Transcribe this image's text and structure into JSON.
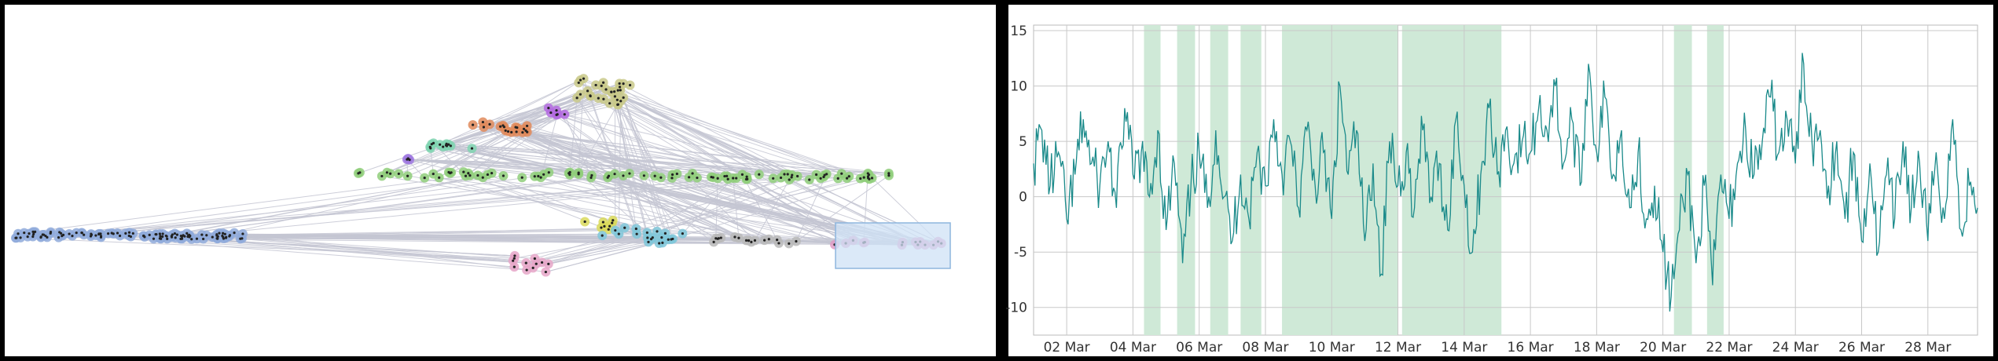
{
  "chart_data": [
    {
      "type": "scatter",
      "grid": false,
      "axes": "none",
      "clusters": [
        {
          "color": "#8faadb",
          "points": 110
        },
        {
          "color": "#8fce7a",
          "points": 90
        },
        {
          "color": "#c9c98a",
          "points": 30
        },
        {
          "color": "#e08a5a",
          "points": 18
        },
        {
          "color": "#b46be0",
          "points": 6
        },
        {
          "color": "#7fd3b0",
          "points": 12
        },
        {
          "color": "#a07ae0",
          "points": 3
        },
        {
          "color": "#d9d95a",
          "points": 8
        },
        {
          "color": "#7fc7d9",
          "points": 20
        },
        {
          "color": "#b8b8b8",
          "points": 18
        },
        {
          "color": "#e09ac6",
          "points": 14
        },
        {
          "color": "#e6a6c8",
          "points": 12
        }
      ],
      "selection": {
        "color": "#cfe2f5"
      }
    },
    {
      "type": "line",
      "grid": true,
      "series_color": "#1a8a8a",
      "highlight_color": "#cfe9d7",
      "x_range": [
        "2021-03-01",
        "2021-03-29T12:00"
      ],
      "ylim": [
        -12.5,
        15.5
      ],
      "yticks": [
        15,
        10,
        5,
        0,
        -5,
        -10
      ],
      "yticklabels": [
        "15",
        "10",
        "5",
        "0",
        "-5",
        "-10"
      ],
      "xticks": [
        "2021-03-02",
        "2021-03-04",
        "2021-03-06",
        "2021-03-08",
        "2021-03-10",
        "2021-03-12",
        "2021-03-14",
        "2021-03-16",
        "2021-03-18",
        "2021-03-20",
        "2021-03-22",
        "2021-03-24",
        "2021-03-26",
        "2021-03-28"
      ],
      "xticklabels": [
        "02 Mar",
        "04 Mar",
        "06 Mar",
        "08 Mar",
        "10 Mar",
        "12 Mar",
        "14 Mar",
        "16 Mar",
        "18 Mar",
        "20 Mar",
        "22 Mar",
        "24 Mar",
        "26 Mar",
        "28 Mar"
      ],
      "highlight_bands": [
        [
          "2021-03-04T08:00",
          "2021-03-04T20:00"
        ],
        [
          "2021-03-05T08:00",
          "2021-03-05T21:00"
        ],
        [
          "2021-03-06T08:00",
          "2021-03-06T21:00"
        ],
        [
          "2021-03-07T06:00",
          "2021-03-07T21:00"
        ],
        [
          "2021-03-08T12:00",
          "2021-03-12T00:00"
        ],
        [
          "2021-03-12T03:00",
          "2021-03-15T03:00"
        ],
        [
          "2021-03-20T08:00",
          "2021-03-20T21:00"
        ],
        [
          "2021-03-21T08:00",
          "2021-03-21T20:00"
        ]
      ],
      "series": [
        {
          "values": [
            [
              "2021-03-01T00:00",
              3
            ],
            [
              "2021-03-01T06:00",
              6
            ],
            [
              "2021-03-01T12:00",
              1
            ],
            [
              "2021-03-01T18:00",
              4
            ],
            [
              "2021-03-02T00:00",
              -2
            ],
            [
              "2021-03-02T06:00",
              2
            ],
            [
              "2021-03-02T12:00",
              7
            ],
            [
              "2021-03-02T18:00",
              3
            ],
            [
              "2021-03-03T00:00",
              1
            ],
            [
              "2021-03-03T06:00",
              5
            ],
            [
              "2021-03-03T12:00",
              -1
            ],
            [
              "2021-03-03T18:00",
              8
            ],
            [
              "2021-03-04T00:00",
              2
            ],
            [
              "2021-03-04T06:00",
              4
            ],
            [
              "2021-03-04T12:00",
              0
            ],
            [
              "2021-03-04T18:00",
              6
            ],
            [
              "2021-03-05T00:00",
              -3
            ],
            [
              "2021-03-05T06:00",
              3
            ],
            [
              "2021-03-05T12:00",
              -6
            ],
            [
              "2021-03-05T18:00",
              1
            ],
            [
              "2021-03-06T00:00",
              4
            ],
            [
              "2021-03-06T06:00",
              -1
            ],
            [
              "2021-03-06T12:00",
              6
            ],
            [
              "2021-03-06T18:00",
              0
            ],
            [
              "2021-03-07T00:00",
              -4
            ],
            [
              "2021-03-07T06:00",
              2
            ],
            [
              "2021-03-07T12:00",
              -2
            ],
            [
              "2021-03-07T18:00",
              4
            ],
            [
              "2021-03-08T00:00",
              1
            ],
            [
              "2021-03-08T06:00",
              7
            ],
            [
              "2021-03-08T12:00",
              2
            ],
            [
              "2021-03-08T18:00",
              5
            ],
            [
              "2021-03-09T00:00",
              -1
            ],
            [
              "2021-03-09T06:00",
              6
            ],
            [
              "2021-03-09T12:00",
              1
            ],
            [
              "2021-03-09T18:00",
              4
            ],
            [
              "2021-03-10T00:00",
              -2
            ],
            [
              "2021-03-10T06:00",
              10
            ],
            [
              "2021-03-10T12:00",
              2
            ],
            [
              "2021-03-10T18:00",
              6
            ],
            [
              "2021-03-11T00:00",
              -4
            ],
            [
              "2021-03-11T06:00",
              3
            ],
            [
              "2021-03-11T12:00",
              -7
            ],
            [
              "2021-03-11T18:00",
              5
            ],
            [
              "2021-03-12T00:00",
              1
            ],
            [
              "2021-03-12T06:00",
              4
            ],
            [
              "2021-03-12T12:00",
              -1
            ],
            [
              "2021-03-12T18:00",
              6
            ],
            [
              "2021-03-13T00:00",
              0
            ],
            [
              "2021-03-13T06:00",
              3
            ],
            [
              "2021-03-13T12:00",
              -3
            ],
            [
              "2021-03-13T18:00",
              7
            ],
            [
              "2021-03-14T00:00",
              1
            ],
            [
              "2021-03-14T06:00",
              -5
            ],
            [
              "2021-03-14T12:00",
              2
            ],
            [
              "2021-03-14T18:00",
              8
            ],
            [
              "2021-03-15T00:00",
              2
            ],
            [
              "2021-03-15T06:00",
              6
            ],
            [
              "2021-03-15T12:00",
              3
            ],
            [
              "2021-03-15T18:00",
              5
            ],
            [
              "2021-03-16T00:00",
              4
            ],
            [
              "2021-03-16T06:00",
              8
            ],
            [
              "2021-03-16T12:00",
              6
            ],
            [
              "2021-03-16T18:00",
              10
            ],
            [
              "2021-03-17T00:00",
              3
            ],
            [
              "2021-03-17T06:00",
              7
            ],
            [
              "2021-03-17T12:00",
              1
            ],
            [
              "2021-03-17T18:00",
              12
            ],
            [
              "2021-03-18T00:00",
              4
            ],
            [
              "2021-03-18T06:00",
              9
            ],
            [
              "2021-03-18T12:00",
              2
            ],
            [
              "2021-03-18T18:00",
              6
            ],
            [
              "2021-03-19T00:00",
              -1
            ],
            [
              "2021-03-19T06:00",
              4
            ],
            [
              "2021-03-19T12:00",
              -2
            ],
            [
              "2021-03-19T18:00",
              1
            ],
            [
              "2021-03-20T00:00",
              -5
            ],
            [
              "2021-03-20T06:00",
              -9
            ],
            [
              "2021-03-20T12:00",
              -3
            ],
            [
              "2021-03-20T18:00",
              2
            ],
            [
              "2021-03-21T00:00",
              -6
            ],
            [
              "2021-03-21T06:00",
              1
            ],
            [
              "2021-03-21T12:00",
              -8
            ],
            [
              "2021-03-21T18:00",
              2
            ],
            [
              "2021-03-22T00:00",
              -2
            ],
            [
              "2021-03-22T06:00",
              3
            ],
            [
              "2021-03-22T12:00",
              6
            ],
            [
              "2021-03-22T18:00",
              2
            ],
            [
              "2021-03-23T00:00",
              5
            ],
            [
              "2021-03-23T06:00",
              9
            ],
            [
              "2021-03-23T12:00",
              4
            ],
            [
              "2021-03-23T18:00",
              7
            ],
            [
              "2021-03-24T00:00",
              3
            ],
            [
              "2021-03-24T06:00",
              12
            ],
            [
              "2021-03-24T12:00",
              5
            ],
            [
              "2021-03-24T18:00",
              6
            ],
            [
              "2021-03-25T00:00",
              1
            ],
            [
              "2021-03-25T06:00",
              5
            ],
            [
              "2021-03-25T12:00",
              -2
            ],
            [
              "2021-03-25T18:00",
              4
            ],
            [
              "2021-03-26T00:00",
              -4
            ],
            [
              "2021-03-26T06:00",
              3
            ],
            [
              "2021-03-26T12:00",
              -5
            ],
            [
              "2021-03-26T18:00",
              2
            ],
            [
              "2021-03-27T00:00",
              -2
            ],
            [
              "2021-03-27T06:00",
              5
            ],
            [
              "2021-03-27T12:00",
              -1
            ],
            [
              "2021-03-27T18:00",
              3
            ],
            [
              "2021-03-28T00:00",
              -4
            ],
            [
              "2021-03-28T06:00",
              4
            ],
            [
              "2021-03-28T12:00",
              -2
            ],
            [
              "2021-03-28T18:00",
              7
            ],
            [
              "2021-03-29T00:00",
              -3
            ],
            [
              "2021-03-29T06:00",
              1
            ],
            [
              "2021-03-29T12:00",
              -1
            ]
          ]
        }
      ]
    }
  ]
}
